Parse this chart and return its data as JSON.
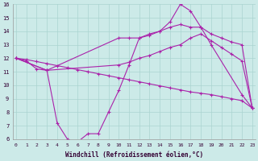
{
  "bg_color": "#cceae8",
  "grid_color": "#aad4d0",
  "line_color": "#aa22aa",
  "xlabel": "Windchill (Refroidissement éolien,°C)",
  "x_min": 0,
  "x_max": 23,
  "y_min": 6,
  "y_max": 16,
  "line1_x": [
    0,
    1,
    2,
    3,
    4,
    5,
    6,
    7,
    8,
    9,
    10,
    11,
    12,
    13,
    14,
    15,
    16,
    17,
    18,
    19,
    22,
    23
  ],
  "line1_y": [
    12,
    11.8,
    11.2,
    11.1,
    7.2,
    6.0,
    5.8,
    6.4,
    6.4,
    8.0,
    9.6,
    11.5,
    13.5,
    13.8,
    14.0,
    14.7,
    16.0,
    15.5,
    14.3,
    13.0,
    9.3,
    8.3
  ],
  "line2_x": [
    0,
    1,
    2,
    3,
    4,
    5,
    6,
    7,
    8,
    9,
    10,
    11,
    12,
    13,
    14,
    15,
    16,
    17,
    18,
    19,
    20,
    21,
    22,
    23
  ],
  "line2_y": [
    12.0,
    11.9,
    11.75,
    11.6,
    11.45,
    11.3,
    11.15,
    11.0,
    10.85,
    10.7,
    10.55,
    10.4,
    10.25,
    10.1,
    9.95,
    9.8,
    9.65,
    9.5,
    9.4,
    9.3,
    9.15,
    9.0,
    8.85,
    8.3
  ],
  "line3_x": [
    0,
    3,
    10,
    11,
    12,
    13,
    14,
    15,
    16,
    17,
    18,
    19,
    20,
    21,
    22,
    23
  ],
  "line3_y": [
    12,
    11.1,
    13.5,
    13.5,
    13.5,
    13.7,
    14.0,
    14.3,
    14.5,
    14.3,
    14.3,
    13.8,
    13.5,
    13.2,
    13.0,
    8.3
  ],
  "line4_x": [
    0,
    3,
    10,
    11,
    12,
    13,
    14,
    15,
    16,
    17,
    18,
    19,
    20,
    21,
    22,
    23
  ],
  "line4_y": [
    12,
    11.1,
    11.5,
    11.7,
    12.0,
    12.2,
    12.5,
    12.8,
    13.0,
    13.5,
    13.8,
    13.3,
    12.8,
    12.3,
    11.8,
    8.3
  ]
}
